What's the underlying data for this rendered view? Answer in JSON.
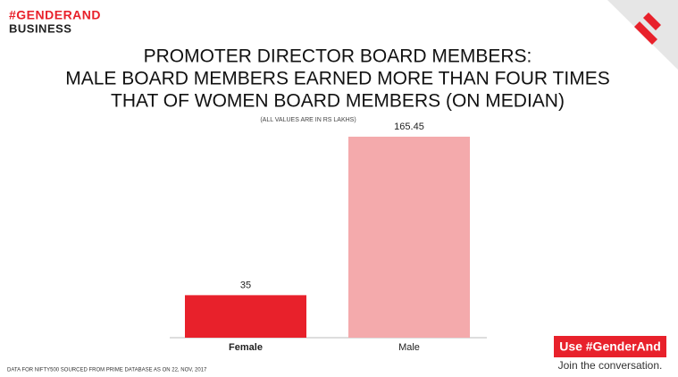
{
  "header": {
    "brand": "#GENDERAND",
    "section": "BUSINESS"
  },
  "chart_data": {
    "type": "bar",
    "title": [
      "PROMOTER DIRECTOR BOARD MEMBERS:",
      "MALE BOARD MEMBERS EARNED MORE THAN FOUR TIMES",
      "THAT OF WOMEN BOARD MEMBERS (ON MEDIAN)"
    ],
    "subtitle": "(ALL VALUES ARE IN RS LAKHS)",
    "categories": [
      "Female",
      "Male"
    ],
    "values": [
      35,
      165.45
    ],
    "colors": [
      "#e8212b",
      "#f4aaac"
    ]
  },
  "footer": {
    "source": "DATA FOR NIFTY500 SOURCED FROM PRIME DATABASE AS ON 22, NOV, 2017",
    "button": "Use #GenderAnd",
    "tagline": "Join the conversation."
  }
}
